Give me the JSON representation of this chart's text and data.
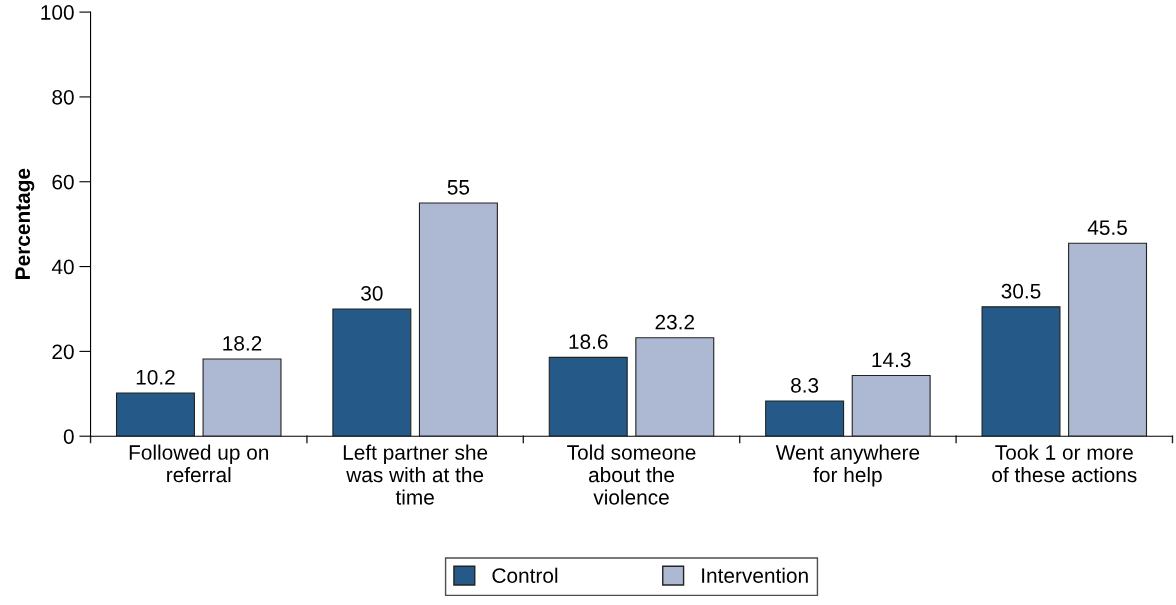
{
  "chart_data": {
    "type": "bar",
    "ylabel": "Percentage",
    "categories": [
      "Followed up on\nreferral",
      "Left partner she\nwas with at the\ntime",
      "Told someone\nabout the\nviolence",
      "Went anywhere\nfor help",
      "Took 1 or more\nof these actions"
    ],
    "series": [
      {
        "name": "Control",
        "color": "#255a88",
        "values": [
          10.2,
          30,
          18.6,
          8.3,
          30.5
        ]
      },
      {
        "name": "Intervention",
        "color": "#adb8d3",
        "values": [
          18.2,
          55,
          23.2,
          14.3,
          45.5
        ]
      }
    ],
    "ylim": [
      0,
      100
    ],
    "yticks": [
      0,
      20,
      40,
      60,
      80,
      100
    ],
    "data_labels": true,
    "legend": "bottom",
    "grid": false
  }
}
